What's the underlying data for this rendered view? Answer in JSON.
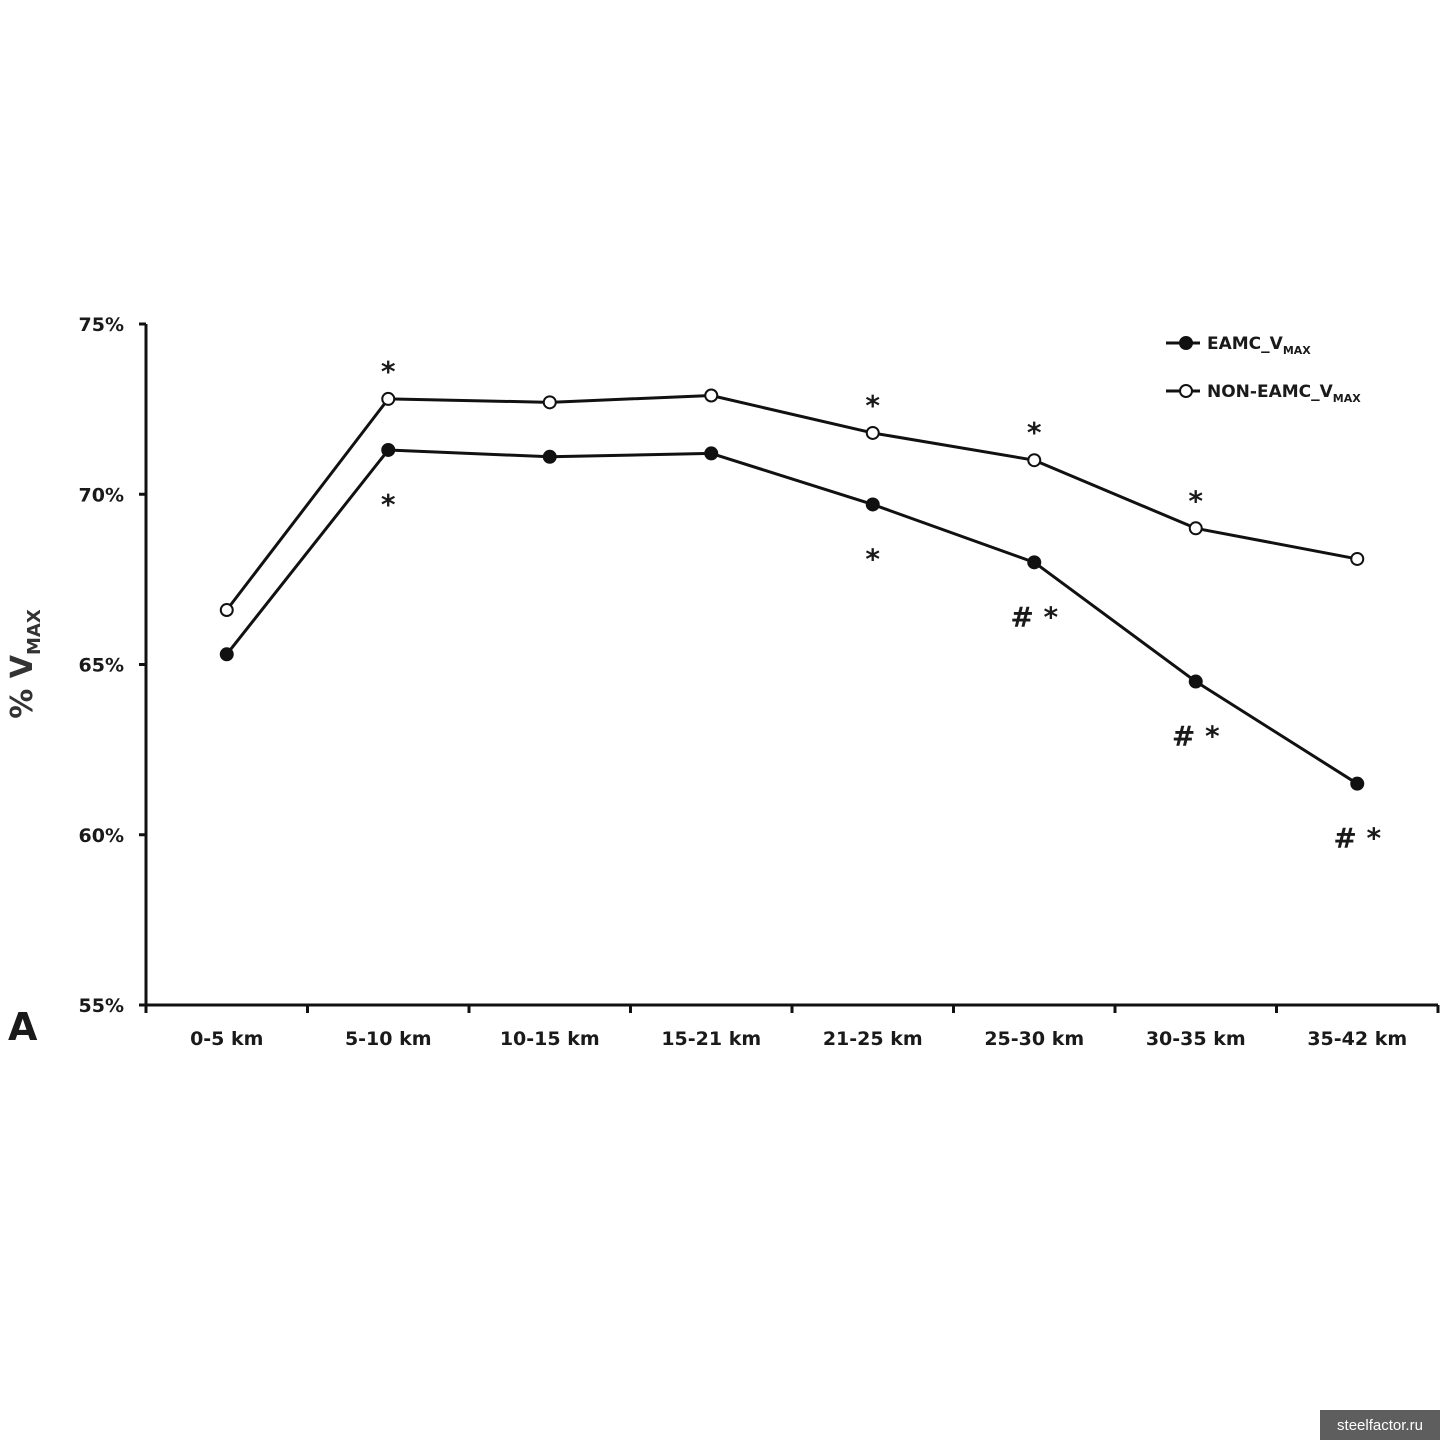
{
  "chart_data": {
    "type": "line",
    "categories": [
      "0-5 km",
      "5-10 km",
      "10-15 km",
      "15-21 km",
      "21-25 km",
      "25-30 km",
      "30-35 km",
      "35-42 km"
    ],
    "series": [
      {
        "name": "EAMC_V",
        "name_sub": "MAX",
        "marker": "filled",
        "values": [
          65.3,
          71.3,
          71.1,
          71.2,
          69.7,
          68.0,
          64.5,
          61.5
        ]
      },
      {
        "name": "NON-EAMC_V",
        "name_sub": "MAX",
        "marker": "open",
        "values": [
          66.6,
          72.8,
          72.7,
          72.9,
          71.8,
          71.0,
          69.0,
          68.1
        ]
      }
    ],
    "ylabel": "% V",
    "ylabel_sub": "MAX",
    "ylim": [
      55,
      75
    ],
    "yticks": [
      "55%",
      "60%",
      "65%",
      "70%",
      "75%"
    ],
    "grid": false,
    "legend_position": "top-right",
    "panel_label": "A",
    "annotations": [
      {
        "category": "5-10 km",
        "series": "NON-EAMC_V",
        "position": "above",
        "text": "*"
      },
      {
        "category": "5-10 km",
        "series": "EAMC_V",
        "position": "below",
        "text": "*"
      },
      {
        "category": "21-25 km",
        "series": "NON-EAMC_V",
        "position": "above",
        "text": "*"
      },
      {
        "category": "21-25 km",
        "series": "EAMC_V",
        "position": "below",
        "text": "*"
      },
      {
        "category": "25-30 km",
        "series": "NON-EAMC_V",
        "position": "above",
        "text": "*"
      },
      {
        "category": "25-30 km",
        "series": "EAMC_V",
        "position": "below",
        "text": "# *"
      },
      {
        "category": "30-35 km",
        "series": "NON-EAMC_V",
        "position": "above",
        "text": "*"
      },
      {
        "category": "30-35 km",
        "series": "EAMC_V",
        "position": "below",
        "text": "# *"
      },
      {
        "category": "35-42 km",
        "series": "EAMC_V",
        "position": "below",
        "text": "# *"
      }
    ]
  },
  "watermark": "steelfactor.ru"
}
